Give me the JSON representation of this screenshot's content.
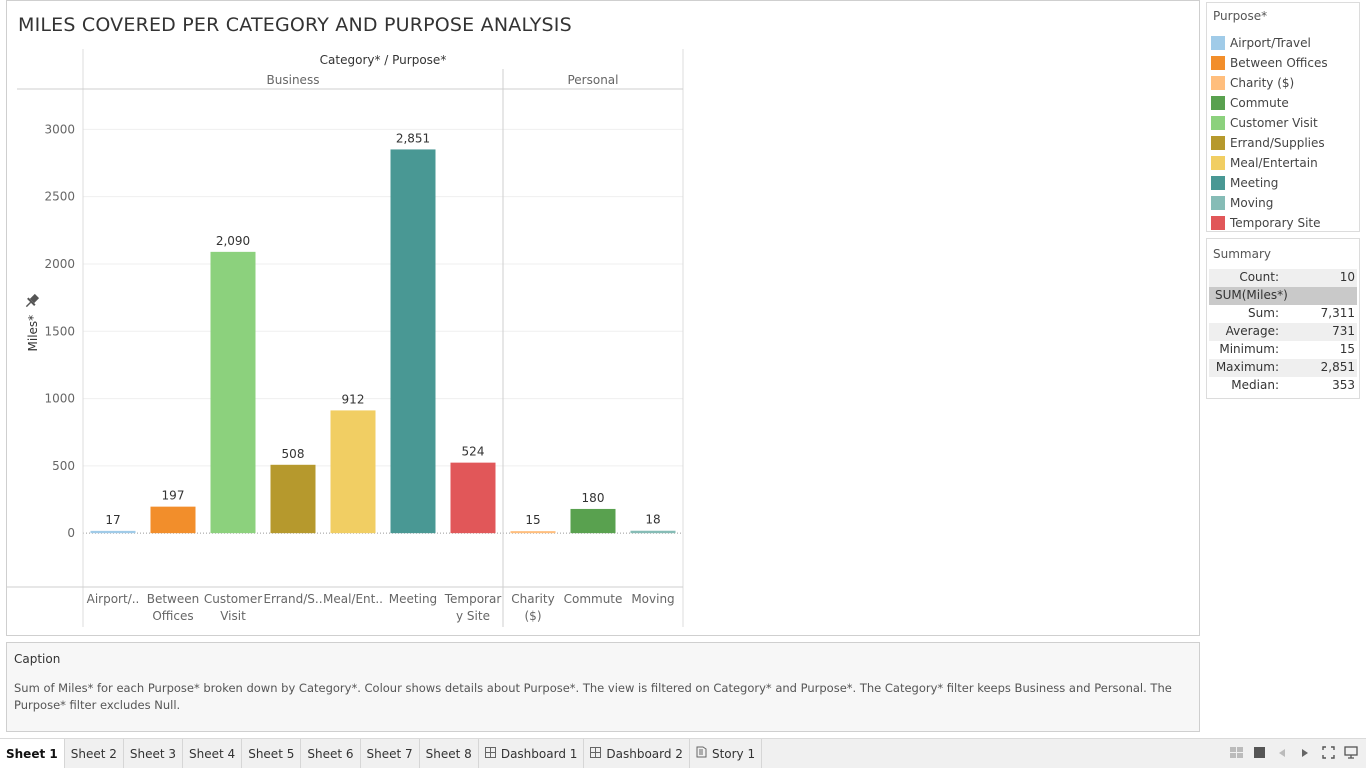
{
  "title": "MILES COVERED PER CATEGORY AND PURPOSE ANALYSIS",
  "chart_data": {
    "type": "bar",
    "header": "Category* / Purpose*",
    "ylabel": "Miles*",
    "ylim": [
      -400,
      3300
    ],
    "yticks": [
      0,
      500,
      1000,
      1500,
      2000,
      2500,
      3000
    ],
    "grid": true,
    "groups": [
      {
        "name": "Business",
        "categories": [
          "Airport/..",
          "Between Offices",
          "Customer Visit",
          "Errand/S..",
          "Meal/Ent..",
          "Meeting",
          "Temporary Site"
        ],
        "tick_lines": [
          [
            "Airport/.."
          ],
          [
            "Between",
            "Offices"
          ],
          [
            "Customer",
            "Visit"
          ],
          [
            "Errand/S.."
          ],
          [
            "Meal/Ent.."
          ],
          [
            "Meeting"
          ],
          [
            "Temporar",
            "y Site"
          ]
        ],
        "values": [
          17,
          197,
          2090,
          508,
          912,
          2851,
          524
        ],
        "labels": [
          "17",
          "197",
          "2,090",
          "508",
          "912",
          "2,851",
          "524"
        ],
        "colors": [
          "#a0cbe8",
          "#f28e2b",
          "#8cd17d",
          "#b6992d",
          "#f1ce63",
          "#499894",
          "#e15759"
        ]
      },
      {
        "name": "Personal",
        "categories": [
          "Charity ($)",
          "Commute",
          "Moving"
        ],
        "tick_lines": [
          [
            "Charity",
            "($)"
          ],
          [
            "Commute"
          ],
          [
            "Moving"
          ]
        ],
        "values": [
          15,
          180,
          18
        ],
        "labels": [
          "15",
          "180",
          "18"
        ],
        "colors": [
          "#ffbe7d",
          "#59a14f",
          "#86bcb6"
        ]
      }
    ]
  },
  "legend": {
    "title": "Purpose*",
    "items": [
      {
        "label": "Airport/Travel",
        "color": "#a0cbe8"
      },
      {
        "label": "Between Offices",
        "color": "#f28e2b"
      },
      {
        "label": "Charity ($)",
        "color": "#ffbe7d"
      },
      {
        "label": "Commute",
        "color": "#59a14f"
      },
      {
        "label": "Customer Visit",
        "color": "#8cd17d"
      },
      {
        "label": "Errand/Supplies",
        "color": "#b6992d"
      },
      {
        "label": "Meal/Entertain",
        "color": "#f1ce63"
      },
      {
        "label": "Meeting",
        "color": "#499894"
      },
      {
        "label": "Moving",
        "color": "#86bcb6"
      },
      {
        "label": "Temporary Site",
        "color": "#e15759"
      }
    ]
  },
  "summary": {
    "title": "Summary",
    "count_label": "Count:",
    "count_value": "10",
    "measure": "SUM(Miles*)",
    "rows": [
      {
        "label": "Sum:",
        "value": "7,311"
      },
      {
        "label": "Average:",
        "value": "731"
      },
      {
        "label": "Minimum:",
        "value": "15"
      },
      {
        "label": "Maximum:",
        "value": "2,851"
      },
      {
        "label": "Median:",
        "value": "353"
      }
    ]
  },
  "caption": {
    "title": "Caption",
    "text": "Sum of Miles* for each Purpose* broken down by Category*.  Colour shows details about Purpose*. The view is filtered on Category* and Purpose*. The Category* filter keeps Business and Personal. The Purpose* filter excludes Null."
  },
  "tabs": [
    {
      "label": "Sheet 1",
      "icon": "",
      "active": true
    },
    {
      "label": "Sheet 2",
      "icon": "",
      "active": false
    },
    {
      "label": "Sheet 3",
      "icon": "",
      "active": false
    },
    {
      "label": "Sheet 4",
      "icon": "",
      "active": false
    },
    {
      "label": "Sheet 5",
      "icon": "",
      "active": false
    },
    {
      "label": "Sheet 6",
      "icon": "",
      "active": false
    },
    {
      "label": "Sheet 7",
      "icon": "",
      "active": false
    },
    {
      "label": "Sheet 8",
      "icon": "",
      "active": false
    },
    {
      "label": "Dashboard 1",
      "icon": "dashboard-icon",
      "active": false
    },
    {
      "label": "Dashboard 2",
      "icon": "dashboard-icon",
      "active": false
    },
    {
      "label": "Story 1",
      "icon": "story-icon",
      "active": false
    }
  ],
  "nav_icons": [
    "grid-view-icon",
    "film-strip-icon",
    "prev-icon",
    "next-icon",
    "fit-screen-icon",
    "presentation-icon"
  ]
}
